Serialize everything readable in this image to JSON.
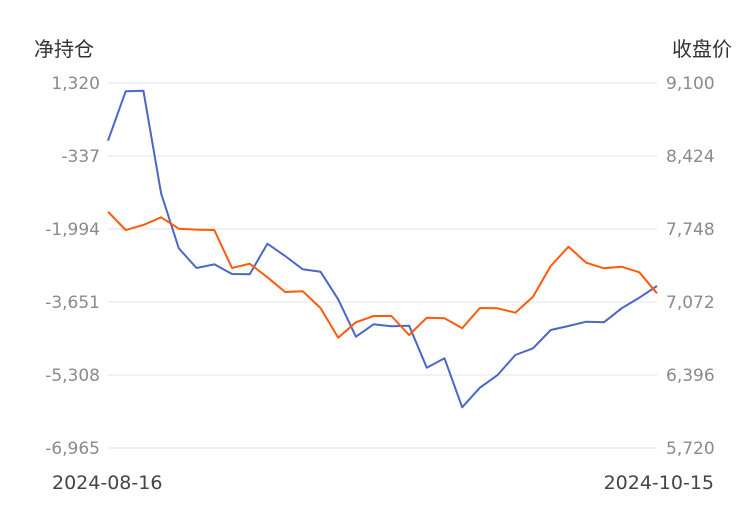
{
  "chart_data": {
    "type": "line",
    "left_axis": {
      "title": "净持仓",
      "ticks": [
        "1,320",
        "-337",
        "-1,994",
        "-3,651",
        "-5,308",
        "-6,965"
      ],
      "range": [
        -6965,
        1320
      ]
    },
    "right_axis": {
      "title": "收盘价",
      "ticks": [
        "9,100",
        "8,424",
        "7,748",
        "7,072",
        "6,396",
        "5,720"
      ],
      "range": [
        5720,
        9100
      ]
    },
    "x_labels": [
      "2024-08-16",
      "2024-10-15"
    ],
    "grid": true,
    "series": [
      {
        "axis": "left",
        "color": "#4a66c8",
        "values": [
          10,
          1132,
          1145,
          -1184,
          -2432,
          -2880,
          -2796,
          -3016,
          -3023,
          -2328,
          -2607,
          -2909,
          -2963,
          -3590,
          -4439,
          -4158,
          -4203,
          -4189,
          -5143,
          -4929,
          -6042,
          -5597,
          -5308,
          -4854,
          -4702,
          -4287,
          -4196,
          -4098,
          -4112,
          -3794,
          -3554,
          -3288
        ]
      },
      {
        "axis": "right",
        "color": "#ff5a0a",
        "values": [
          7908,
          7739,
          7785,
          7856,
          7751,
          7742,
          7739,
          7387,
          7427,
          7301,
          7165,
          7171,
          7016,
          6741,
          6884,
          6942,
          6942,
          6766,
          6927,
          6921,
          6829,
          7016,
          7014,
          6973,
          7121,
          7405,
          7584,
          7436,
          7384,
          7399,
          7347,
          7153
        ]
      }
    ]
  }
}
